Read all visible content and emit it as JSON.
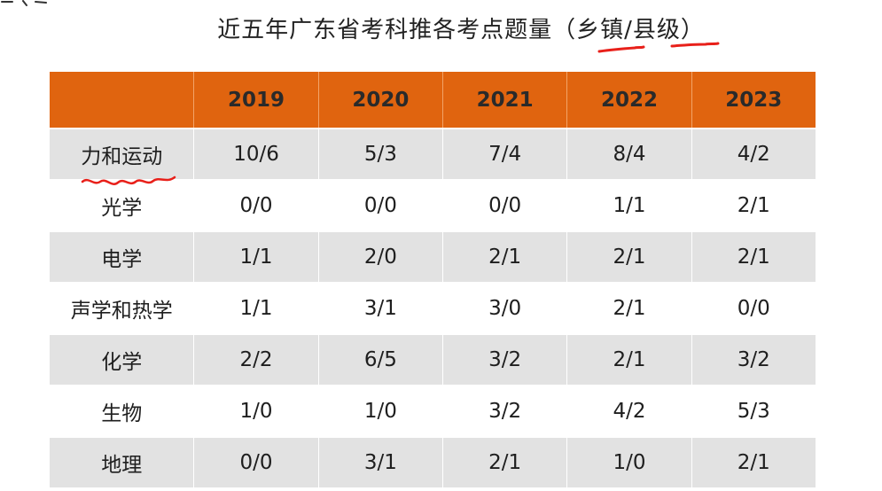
{
  "title": "近五年广东省考科推各考点题量（乡镇/县级）",
  "annotation_color": "#e8201a",
  "header_color": "#e0640f",
  "table": {
    "corner": "",
    "years": [
      "2019",
      "2020",
      "2021",
      "2022",
      "2023"
    ],
    "rows": [
      {
        "topic": "力和运动",
        "values": [
          "10/6",
          "5/3",
          "7/4",
          "8/4",
          "4/2"
        ]
      },
      {
        "topic": "光学",
        "values": [
          "0/0",
          "0/0",
          "0/0",
          "1/1",
          "2/1"
        ]
      },
      {
        "topic": "电学",
        "values": [
          "1/1",
          "2/0",
          "2/1",
          "2/1",
          "2/1"
        ]
      },
      {
        "topic": "声学和热学",
        "values": [
          "1/1",
          "3/1",
          "3/0",
          "2/1",
          "0/0"
        ]
      },
      {
        "topic": "化学",
        "values": [
          "2/2",
          "6/5",
          "3/2",
          "2/1",
          "3/2"
        ]
      },
      {
        "topic": "生物",
        "values": [
          "1/0",
          "1/0",
          "3/2",
          "4/2",
          "5/3"
        ]
      },
      {
        "topic": "地理",
        "values": [
          "0/0",
          "3/1",
          "2/1",
          "1/0",
          "2/1"
        ]
      }
    ]
  }
}
